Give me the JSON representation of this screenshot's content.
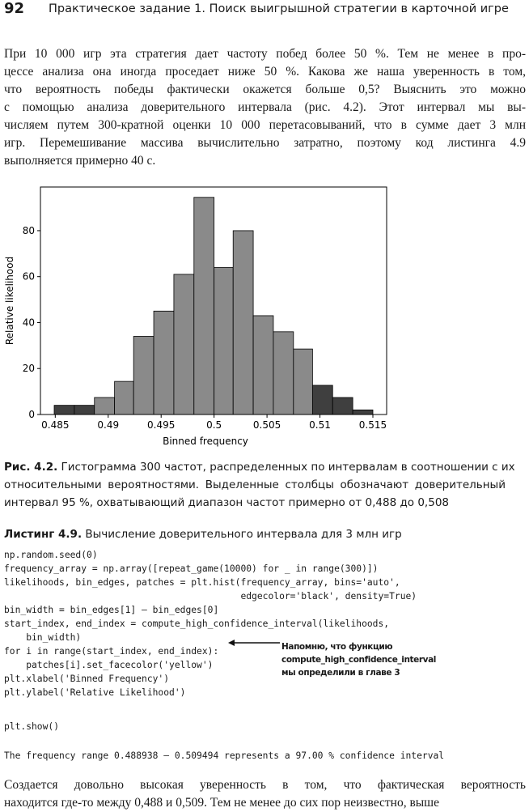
{
  "header": {
    "page_number": "92",
    "title": "Практическое задание 1. Поиск выигрышной стратегии в карточной игре"
  },
  "intro": {
    "lines": [
      "При 10 000 игр эта стратегия дает частоту побед более 50 %. Тем не менее в про-",
      "цессе анализа она иногда проседает ниже 50 %. Какова же наша уверенность в том,",
      "что вероятность победы фактически окажется больше 0,5? Выяснить это можно",
      "с помощью анализа доверительного интервала (рис. 4.2). Этот интервал мы вы-",
      "числяем путем 300-кратной оценки 10 000 перетасовываний, что в сумме дает 3 млн",
      "игр. Перемешивание массива вычислительно затратно, поэтому код листинга 4.9",
      "выполняется примерно 40 с."
    ]
  },
  "chart_data": {
    "type": "histogram",
    "xlabel": "Binned frequency",
    "ylabel": "Relative likelihood",
    "bins": [
      0.4849,
      0.4868,
      0.4887,
      0.4906,
      0.4924,
      0.4943,
      0.4962,
      0.4981,
      0.5,
      0.5018,
      0.5037,
      0.5056,
      0.5075,
      0.5093,
      0.5112,
      0.5131,
      0.515
    ],
    "values": [
      4,
      4,
      7.4,
      14.4,
      34,
      45,
      61,
      94.5,
      64,
      80,
      43,
      36,
      28.5,
      12.7,
      7.4,
      2
    ],
    "colors": [
      "#3f3f3f",
      "#3f3f3f",
      "#8a8a8a",
      "#8a8a8a",
      "#8a8a8a",
      "#8a8a8a",
      "#8a8a8a",
      "#8a8a8a",
      "#8a8a8a",
      "#8a8a8a",
      "#8a8a8a",
      "#8a8a8a",
      "#8a8a8a",
      "#3f3f3f",
      "#3f3f3f",
      "#3f3f3f"
    ],
    "xlim": [
      0.4836,
      0.5163
    ],
    "ylim": [
      0,
      99
    ],
    "xticks": [
      0.485,
      0.49,
      0.495,
      0.5,
      0.505,
      0.51,
      0.515
    ],
    "yticks": [
      0,
      20,
      40,
      60,
      80
    ]
  },
  "caption": {
    "label": "Рис. 4.2.",
    "lines": [
      "Гистограмма 300 частот, распределенных по интервалам в соотношении с их",
      "относительными вероятностями. Выделенные столбцы обозначают доверительный",
      "интервал 95 %, охватывающий диапазон частот примерно от 0,488 до 0,508"
    ]
  },
  "listing": {
    "label": "Листинг 4.9.",
    "title": "Вычисление доверительного интервала для 3 млн игр",
    "code": [
      [
        "np.random.seed(0)",
        "frequency_array = np.array([repeat_game(10000) for _ in range(300)])",
        "likelihoods, bin_edges, patches = plt.hist(frequency_array, bins='auto',",
        "                                           edgecolor='black', density=True)",
        "bin_width = bin_edges[1] — bin_edges[0]",
        "start_index, end_index = compute_high_confidence_interval(likelihoods,",
        "    bin_width)",
        "for i in range(start_index, end_index):",
        "    patches[i].set_facecolor('yellow')",
        "plt.xlabel('Binned Frequency')",
        "plt.ylabel('Relative Likelihood')"
      ],
      [
        "plt.show()"
      ],
      [
        "The frequency range 0.488938 — 0.509494 represents a 97.00 % confidence interval"
      ]
    ],
    "annotation": [
      "Напомню, что функцию",
      "compute_high_confidence_interval",
      "мы определили в главе 3"
    ]
  },
  "outro": {
    "lines": [
      "Создается довольно высокая уверенность в том, что фактическая вероятность",
      "находится где-то между 0,488 и 0,509. Тем не менее до сих пор неизвестно, выше"
    ]
  }
}
